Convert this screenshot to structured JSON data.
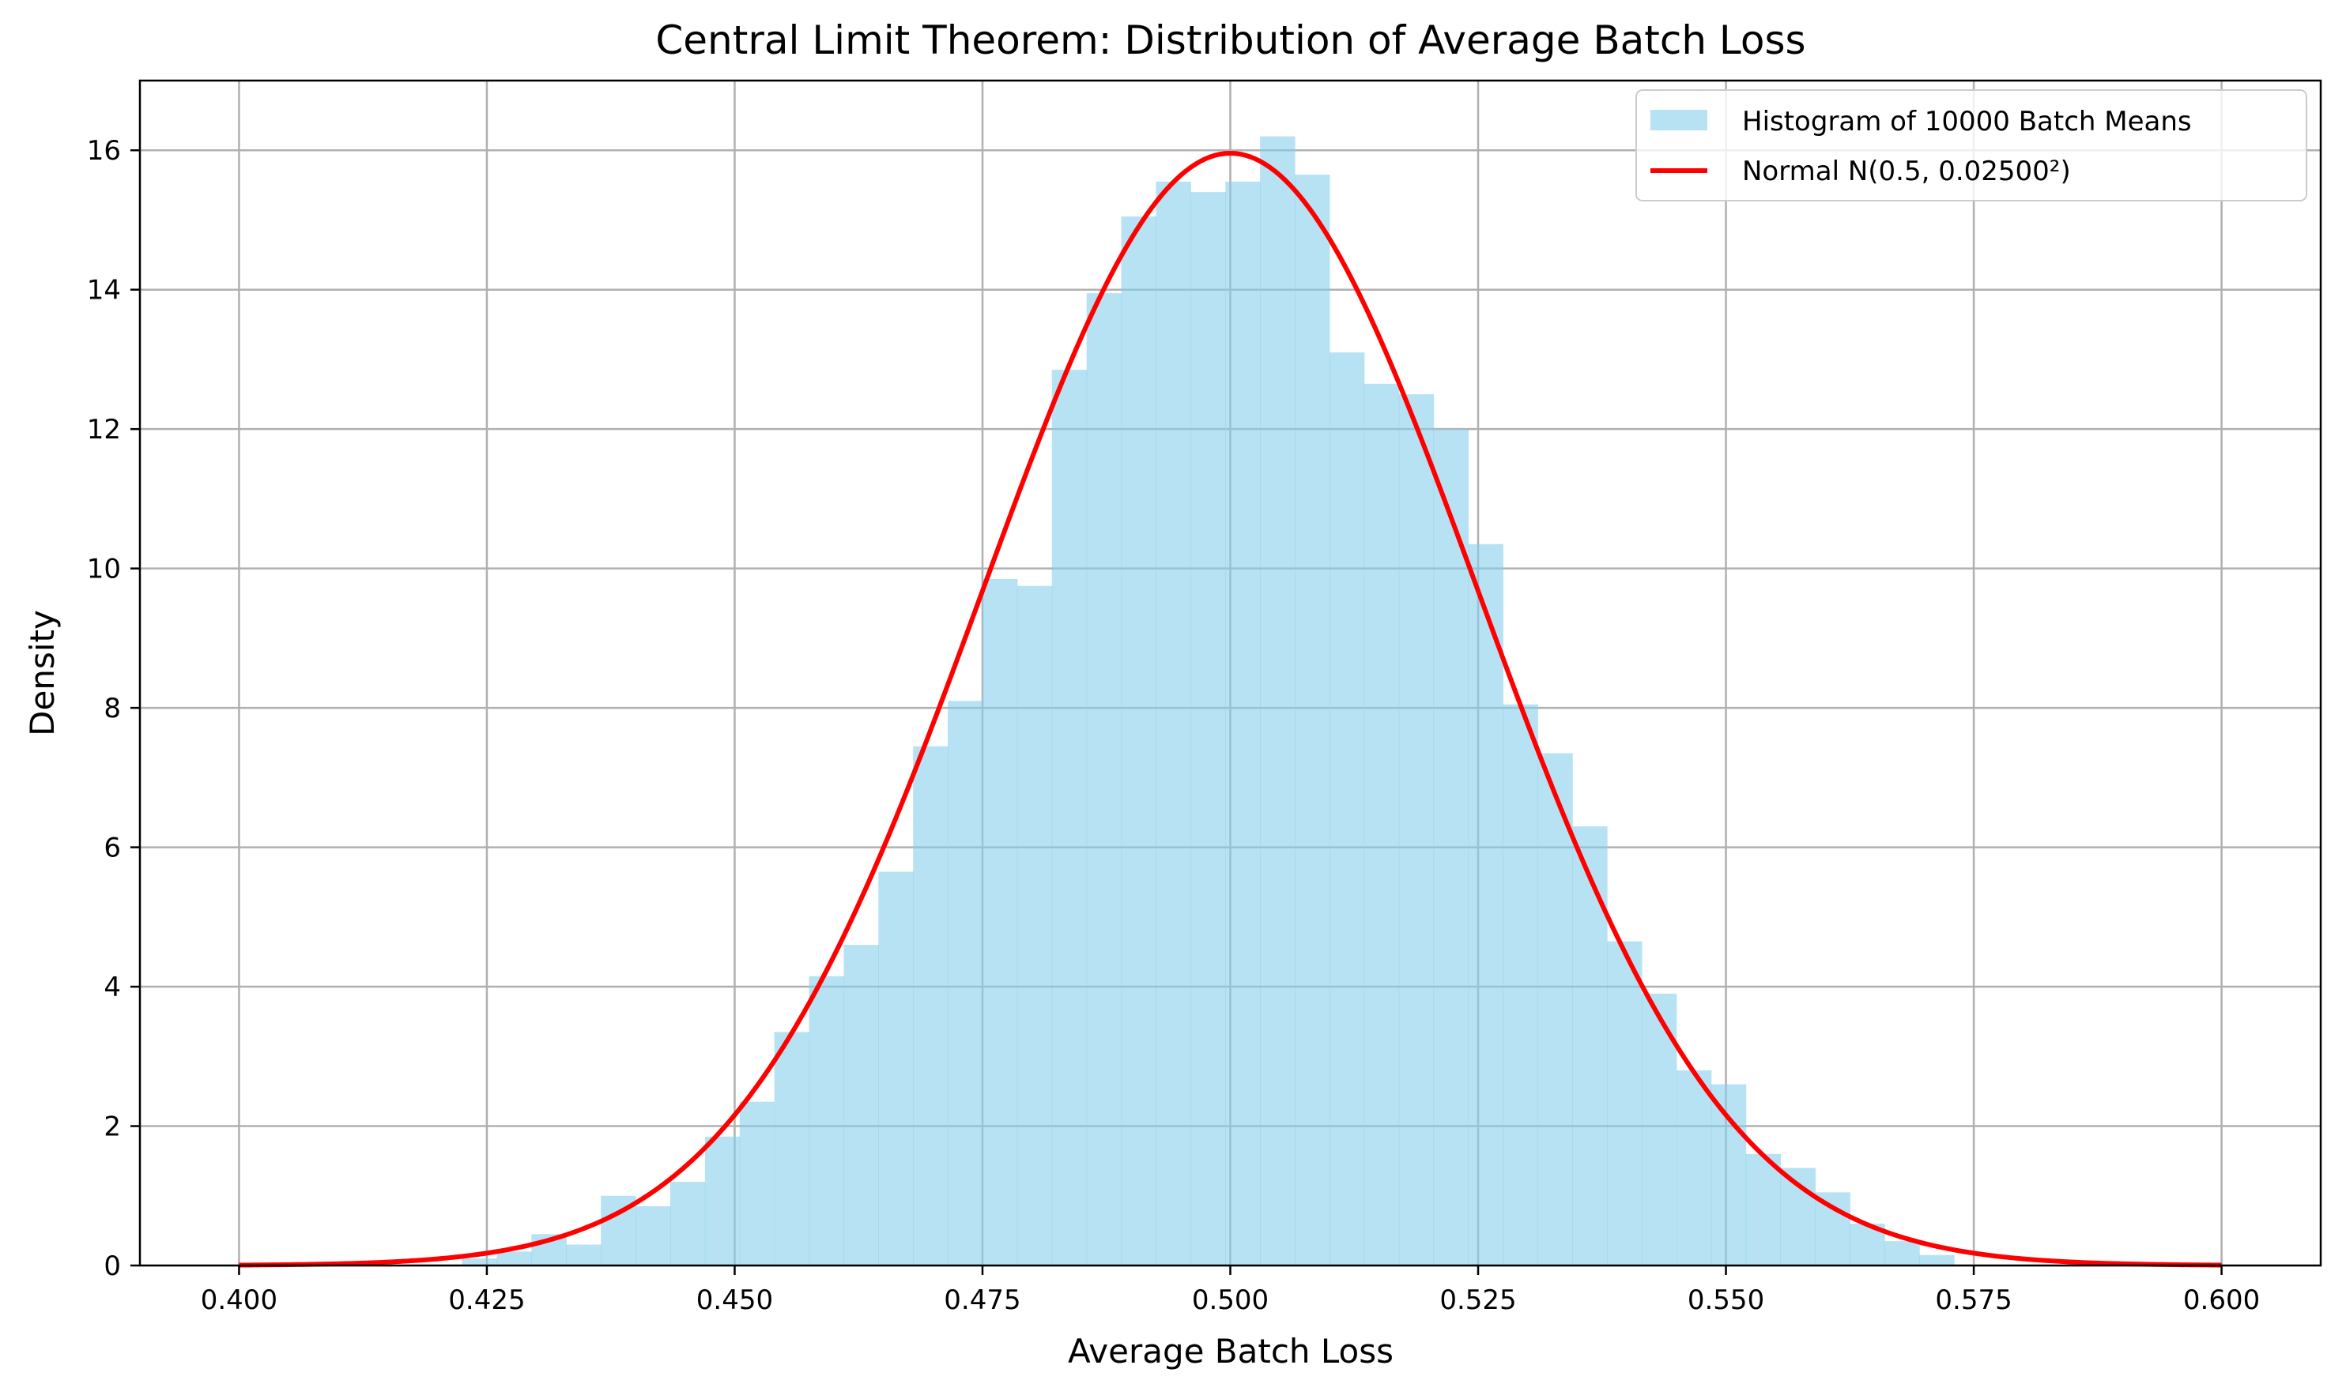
{
  "chart_data": {
    "type": "bar",
    "title": "Central Limit Theorem: Distribution of Average Batch Loss",
    "xlabel": "Average Batch Loss",
    "ylabel": "Density",
    "xlim": [
      0.39,
      0.61
    ],
    "ylim": [
      0,
      17
    ],
    "x_ticks": [
      0.4,
      0.425,
      0.45,
      0.475,
      0.5,
      0.525,
      0.55,
      0.575,
      0.6
    ],
    "x_tick_labels": [
      "0.400",
      "0.425",
      "0.450",
      "0.475",
      "0.500",
      "0.525",
      "0.550",
      "0.575",
      "0.600"
    ],
    "y_ticks": [
      0,
      2,
      4,
      6,
      8,
      10,
      12,
      14,
      16
    ],
    "y_tick_labels": [
      "0",
      "2",
      "4",
      "6",
      "8",
      "10",
      "12",
      "14",
      "16"
    ],
    "grid": true,
    "legend_position": "top-right",
    "histogram": {
      "name": "Histogram of 10000 Batch Means",
      "color": "#87CEEB",
      "opacity": 0.6,
      "bin_width": 0.0035,
      "bin_starts": [
        0.4225,
        0.426,
        0.4295,
        0.433,
        0.4365,
        0.44,
        0.4435,
        0.447,
        0.4505,
        0.454,
        0.4575,
        0.461,
        0.4645,
        0.468,
        0.4715,
        0.475,
        0.4785,
        0.482,
        0.4855,
        0.489,
        0.4925,
        0.496,
        0.4995,
        0.503,
        0.5065,
        0.51,
        0.5135,
        0.517,
        0.5205,
        0.524,
        0.5275,
        0.531,
        0.5345,
        0.538,
        0.5415,
        0.545,
        0.5485,
        0.552,
        0.5555,
        0.559,
        0.5625,
        0.566,
        0.5695
      ],
      "densities": [
        0.1,
        0.2,
        0.45,
        0.3,
        1.0,
        0.85,
        1.2,
        1.85,
        2.35,
        3.35,
        4.15,
        4.6,
        5.65,
        7.45,
        8.1,
        9.85,
        9.75,
        12.85,
        13.95,
        15.05,
        15.55,
        15.4,
        15.55,
        16.2,
        15.65,
        13.1,
        12.65,
        12.5,
        12.0,
        10.35,
        8.05,
        7.35,
        6.3,
        4.65,
        3.9,
        2.8,
        2.6,
        1.6,
        1.4,
        1.05,
        0.6,
        0.35,
        0.15
      ]
    },
    "normal_curve": {
      "name": "Normal N(0.5, 0.02500²)",
      "color": "#FF0000",
      "mean": 0.5,
      "std": 0.025,
      "x_range": [
        0.4,
        0.6
      ]
    },
    "grid_color": "#b0b0b0",
    "axis_color": "#000000"
  }
}
